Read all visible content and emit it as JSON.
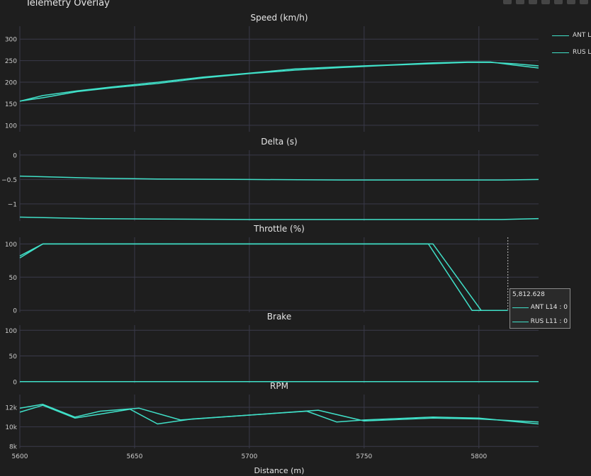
{
  "title": "Telemetry Overlay",
  "colors": {
    "series": "#40e0c8",
    "grid": "#3a3a4a",
    "axis": "#cccccc",
    "background": "#1e1e1e"
  },
  "toolbar": [
    "camera-icon",
    "zoom-icon",
    "pan-icon",
    "zoom-in-icon",
    "zoom-out-icon",
    "autoscale-icon",
    "reset-icon"
  ],
  "legend": {
    "items": [
      {
        "label": "ANT L"
      },
      {
        "label": "RUS L"
      }
    ]
  },
  "hover": {
    "x_label": "5,812.628",
    "x": 5812.628,
    "rows": [
      {
        "label": "ANT L14 : 0"
      },
      {
        "label": "RUS L11 : 0"
      }
    ]
  },
  "chart_data": {
    "type": "line",
    "xlabel": "Distance (m)",
    "xlim": [
      5600,
      5826
    ],
    "xticks": [
      5600,
      5650,
      5700,
      5750,
      5800
    ],
    "xtick_labels": [
      "5600",
      "5650",
      "5700",
      "5750",
      "5800"
    ],
    "subplots": [
      {
        "title": "Speed (km/h)",
        "ylim": [
          85,
          330
        ],
        "yticks": [
          100,
          150,
          200,
          250,
          300
        ],
        "ytick_labels": [
          "100",
          "150",
          "200",
          "250",
          "300"
        ],
        "series": [
          {
            "x": [
              5600,
              5610,
              5625,
              5640,
              5660,
              5680,
              5700,
              5720,
              5740,
              5760,
              5780,
              5795,
              5805,
              5815,
              5826
            ],
            "y": [
              156,
              164,
              178,
              187,
              197,
              210,
              220,
              228,
              234,
              239,
              243,
              246,
              246,
              243,
              238
            ]
          },
          {
            "x": [
              5600,
              5610,
              5625,
              5640,
              5660,
              5680,
              5700,
              5720,
              5740,
              5760,
              5780,
              5795,
              5805,
              5815,
              5826
            ],
            "y": [
              156,
              169,
              180,
              189,
              200,
              212,
              221,
              231,
              236,
              240,
              245,
              247,
              247,
              240,
              233
            ]
          }
        ]
      },
      {
        "title": "Delta (s)",
        "ylim": [
          -1.35,
          0.1
        ],
        "yticks": [
          -1,
          -0.5,
          0
        ],
        "ytick_labels": [
          "−1",
          "−0.5",
          "0"
        ],
        "series": [
          {
            "x": [
              5600,
              5630,
              5660,
              5700,
              5740,
              5780,
              5810,
              5826
            ],
            "y": [
              -0.43,
              -0.47,
              -0.49,
              -0.5,
              -0.51,
              -0.51,
              -0.51,
              -0.5
            ]
          },
          {
            "x": [
              5600,
              5630,
              5660,
              5700,
              5740,
              5780,
              5810,
              5826
            ],
            "y": [
              -1.27,
              -1.3,
              -1.31,
              -1.32,
              -1.32,
              -1.32,
              -1.32,
              -1.3
            ]
          }
        ]
      },
      {
        "title": "Throttle (%)",
        "ylim": [
          -3,
          110
        ],
        "yticks": [
          0,
          50,
          100
        ],
        "ytick_labels": [
          "0",
          "50",
          "100"
        ],
        "series": [
          {
            "x": [
              5600,
              5610,
              5778,
              5797,
              5812.6
            ],
            "y": [
              82,
              100,
              100,
              0,
              0
            ]
          },
          {
            "x": [
              5600,
              5610,
              5780,
              5801,
              5812.6
            ],
            "y": [
              79,
              100,
              100,
              0,
              0
            ]
          }
        ]
      },
      {
        "title": "Brake",
        "ylim": [
          -3,
          110
        ],
        "yticks": [
          0,
          50,
          100
        ],
        "ytick_labels": [
          "0",
          "50",
          "100"
        ],
        "series": [
          {
            "x": [
              5600,
              5826
            ],
            "y": [
              0,
              0
            ]
          },
          {
            "x": [
              5600,
              5826
            ],
            "y": [
              0,
              0
            ]
          }
        ]
      },
      {
        "title": "RPM",
        "ylim": [
          7800,
          13300
        ],
        "yticks": [
          8000,
          10000,
          12000
        ],
        "ytick_labels": [
          "8k",
          "10k",
          "12k"
        ],
        "series": [
          {
            "x": [
              5600,
              5610,
              5624,
              5635,
              5648,
              5660,
              5675,
              5700,
              5725,
              5738,
              5750,
              5780,
              5800,
              5826
            ],
            "y": [
              11500,
              12200,
              10900,
              11300,
              11800,
              10300,
              10800,
              11200,
              11600,
              10500,
              10700,
              11000,
              10900,
              10300
            ]
          },
          {
            "x": [
              5600,
              5610,
              5624,
              5635,
              5652,
              5670,
              5700,
              5730,
              5750,
              5780,
              5800,
              5826
            ],
            "y": [
              11900,
              12300,
              11000,
              11600,
              11900,
              10700,
              11200,
              11700,
              10600,
              10900,
              10800,
              10500
            ]
          }
        ]
      }
    ]
  }
}
